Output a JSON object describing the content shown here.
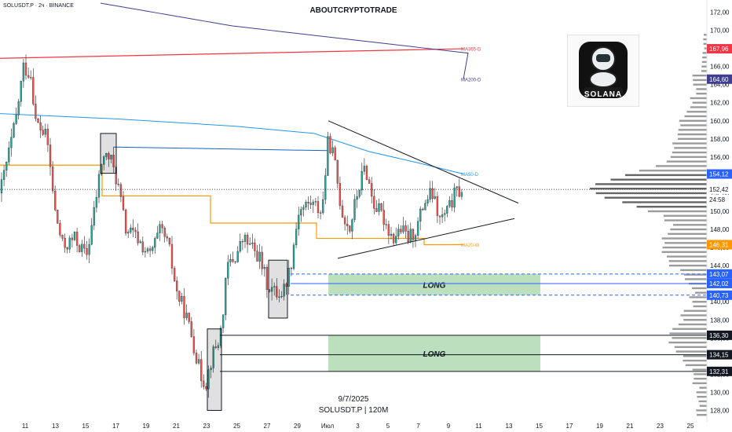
{
  "header": {
    "symbol": "SOLUSDT.P · 2ч · BINANCE",
    "title": "ABOUTCRYPTOTRADE"
  },
  "footer": {
    "date": "9/7/2025",
    "symbol": "SOLUSDT.P | 120M"
  },
  "logo": {
    "text": "SOLANA",
    "icon": "astronaut-meditating-icon"
  },
  "chart_data": {
    "type": "candlestick",
    "y_axis": {
      "min": 127,
      "max": 173,
      "ticks": [
        128,
        130,
        132,
        134,
        136,
        138,
        140,
        142,
        144,
        146,
        148,
        150,
        152,
        154,
        156,
        158,
        160,
        162,
        164,
        166,
        168,
        170,
        172
      ],
      "tick_labels": [
        "128,00",
        "130,00",
        "132,00",
        "134,00",
        "136,00",
        "138,00",
        "140,00",
        "142,00",
        "144,00",
        "146,00",
        "148,00",
        "150,00",
        "152,00",
        "154,00",
        "156,00",
        "158,00",
        "160,00",
        "162,00",
        "164,00",
        "166,00",
        "168,00",
        "170,00",
        "172,00"
      ]
    },
    "x_axis": {
      "tick_labels": [
        "11",
        "13",
        "15",
        "17",
        "19",
        "21",
        "23",
        "25",
        "27",
        "29",
        "Июл",
        "3",
        "5",
        "7",
        "9",
        "11",
        "13",
        "15",
        "17",
        "19",
        "21",
        "23",
        "25"
      ]
    },
    "price_tags": [
      {
        "label": "167,96",
        "value": 167.96,
        "color": "#f23645"
      },
      {
        "label": "164,60",
        "value": 164.6,
        "color": "#3f3e8f"
      },
      {
        "label": "154,12",
        "value": 154.12,
        "color": "#2962ff"
      },
      {
        "label": "152,42",
        "value": 152.42,
        "color": "#131722"
      },
      {
        "label": "24:58",
        "value": 151.3,
        "color": "#131722"
      },
      {
        "label": "146,31",
        "value": 146.31,
        "color": "#ff9800"
      },
      {
        "label": "143,07",
        "value": 143.07,
        "color": "#2962ff"
      },
      {
        "label": "142,02",
        "value": 142.02,
        "color": "#2962ff"
      },
      {
        "label": "140,73",
        "value": 140.73,
        "color": "#2962ff"
      },
      {
        "label": "136,30",
        "value": 136.3,
        "color": "#131722"
      },
      {
        "label": "134,15",
        "value": 134.15,
        "color": "#131722"
      },
      {
        "label": "132,31",
        "value": 132.31,
        "color": "#131722"
      }
    ],
    "moving_averages": [
      {
        "label": "MA365-D",
        "value": 167.96,
        "color": "#f23645"
      },
      {
        "label": "MA200-D",
        "value": 164.6,
        "color": "#3f3e8f"
      },
      {
        "label": "MA50-D",
        "value": 154.12,
        "color": "#2196f3"
      },
      {
        "label": "MA20-W",
        "value": 146.31,
        "color": "#ff9800"
      }
    ],
    "zones": [
      {
        "label": "LONG",
        "top": 143.07,
        "bottom": 140.73
      },
      {
        "label": "LONG",
        "top": 136.3,
        "bottom": 132.31
      }
    ],
    "current_price": 152.42,
    "colors": {
      "up": "#26a69a",
      "down": "#ef5350",
      "zone": "#a5d6a7"
    }
  }
}
